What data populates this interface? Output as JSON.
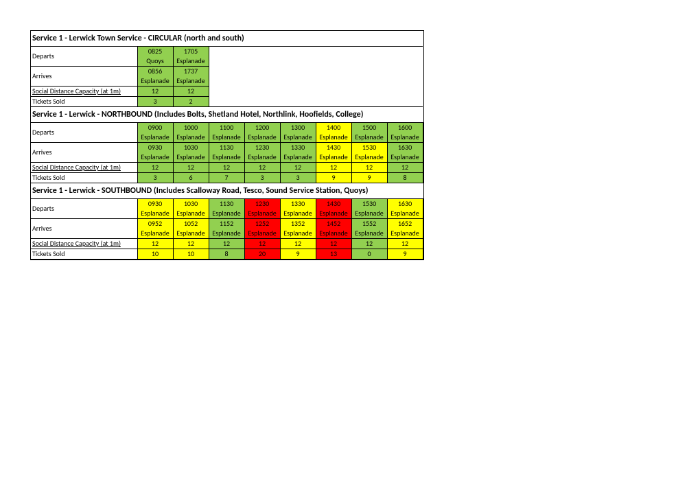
{
  "colors": {
    "green": "#92d050",
    "yellow": "#ffff00",
    "red": "#ff0000",
    "white": "#ffffff",
    "black": "#000000"
  },
  "labels": {
    "departs": "Departs",
    "arrives": "Arrives",
    "capacity": "Social Distance Capacity (at 1m)",
    "tickets": "Tickets Sold"
  },
  "sections": [
    {
      "title": "Service 1 - Lerwick Town Service - CIRCULAR (north and south)",
      "columns": 2,
      "departs": [
        {
          "time": "0825",
          "loc": "Quoys",
          "color": "green"
        },
        {
          "time": "1705",
          "loc": "Esplanade",
          "color": "green"
        }
      ],
      "arrives": [
        {
          "time": "0856",
          "loc": "Esplanade",
          "color": "green"
        },
        {
          "time": "1737",
          "loc": "Esplanade",
          "color": "green"
        }
      ],
      "capacity": [
        {
          "val": "12",
          "color": "green"
        },
        {
          "val": "12",
          "color": "green"
        }
      ],
      "tickets": [
        {
          "val": "3",
          "color": "green"
        },
        {
          "val": "2",
          "color": "green"
        }
      ]
    },
    {
      "title": "Service 1 - Lerwick - NORTHBOUND (Includes Bolts, Shetland Hotel, Northlink, Hoofields, College)",
      "columns": 8,
      "departs": [
        {
          "time": "0900",
          "loc": "Esplanade",
          "color": "green"
        },
        {
          "time": "1000",
          "loc": "Esplanade",
          "color": "green"
        },
        {
          "time": "1100",
          "loc": "Esplanade",
          "color": "green"
        },
        {
          "time": "1200",
          "loc": "Esplanade",
          "color": "green"
        },
        {
          "time": "1300",
          "loc": "Esplanade",
          "color": "green"
        },
        {
          "time": "1400",
          "loc": "Esplanade",
          "color": "yellow"
        },
        {
          "time": "1500",
          "loc": "Esplanade",
          "color": "green"
        },
        {
          "time": "1600",
          "loc": "Esplanade",
          "color": "green"
        }
      ],
      "arrives": [
        {
          "time": "0930",
          "loc": "Esplanade",
          "color": "green"
        },
        {
          "time": "1030",
          "loc": "Esplanade",
          "color": "green"
        },
        {
          "time": "1130",
          "loc": "Esplanade",
          "color": "green"
        },
        {
          "time": "1230",
          "loc": "Esplanade",
          "color": "green"
        },
        {
          "time": "1330",
          "loc": "Esplanade",
          "color": "green"
        },
        {
          "time": "1430",
          "loc": "Esplanade",
          "color": "yellow"
        },
        {
          "time": "1530",
          "loc": "Esplanade",
          "color": "yellow"
        },
        {
          "time": "1630",
          "loc": "Esplanade",
          "color": "green"
        }
      ],
      "capacity": [
        {
          "val": "12",
          "color": "green"
        },
        {
          "val": "12",
          "color": "green"
        },
        {
          "val": "12",
          "color": "green"
        },
        {
          "val": "12",
          "color": "green"
        },
        {
          "val": "12",
          "color": "green"
        },
        {
          "val": "12",
          "color": "yellow"
        },
        {
          "val": "12",
          "color": "yellow"
        },
        {
          "val": "12",
          "color": "green"
        }
      ],
      "tickets": [
        {
          "val": "3",
          "color": "green"
        },
        {
          "val": "6",
          "color": "green"
        },
        {
          "val": "7",
          "color": "green"
        },
        {
          "val": "3",
          "color": "green"
        },
        {
          "val": "3",
          "color": "green"
        },
        {
          "val": "9",
          "color": "yellow"
        },
        {
          "val": "9",
          "color": "yellow"
        },
        {
          "val": "8",
          "color": "green"
        }
      ]
    },
    {
      "title": "Service 1 - Lerwick - SOUTHBOUND (Includes Scalloway Road, Tesco, Sound Service Station, Quoys)",
      "columns": 8,
      "departs": [
        {
          "time": "0930",
          "loc": "Esplanade",
          "color": "yellow"
        },
        {
          "time": "1030",
          "loc": "Esplanade",
          "color": "yellow"
        },
        {
          "time": "1130",
          "loc": "Esplanade",
          "color": "green"
        },
        {
          "time": "1230",
          "loc": "Esplanade",
          "color": "red"
        },
        {
          "time": "1330",
          "loc": "Esplanade",
          "color": "yellow"
        },
        {
          "time": "1430",
          "loc": "Esplanade",
          "color": "red"
        },
        {
          "time": "1530",
          "loc": "Esplanade",
          "color": "green"
        },
        {
          "time": "1630",
          "loc": "Esplanade",
          "color": "yellow"
        }
      ],
      "arrives": [
        {
          "time": "0952",
          "loc": "Esplanade",
          "color": "yellow"
        },
        {
          "time": "1052",
          "loc": "Esplanade",
          "color": "yellow"
        },
        {
          "time": "1152",
          "loc": "Esplanade",
          "color": "green"
        },
        {
          "time": "1252",
          "loc": "Esplanade",
          "color": "red"
        },
        {
          "time": "1352",
          "loc": "Esplanade",
          "color": "yellow"
        },
        {
          "time": "1452",
          "loc": "Esplanade",
          "color": "red"
        },
        {
          "time": "1552",
          "loc": "Esplanade",
          "color": "green"
        },
        {
          "time": "1652",
          "loc": "Esplanade",
          "color": "yellow"
        }
      ],
      "capacity": [
        {
          "val": "12",
          "color": "yellow"
        },
        {
          "val": "12",
          "color": "yellow"
        },
        {
          "val": "12",
          "color": "green"
        },
        {
          "val": "12",
          "color": "red"
        },
        {
          "val": "12",
          "color": "yellow"
        },
        {
          "val": "12",
          "color": "red"
        },
        {
          "val": "12",
          "color": "green"
        },
        {
          "val": "12",
          "color": "yellow"
        }
      ],
      "tickets": [
        {
          "val": "10",
          "color": "yellow"
        },
        {
          "val": "10",
          "color": "yellow"
        },
        {
          "val": "8",
          "color": "green"
        },
        {
          "val": "20",
          "color": "red"
        },
        {
          "val": "9",
          "color": "yellow"
        },
        {
          "val": "13",
          "color": "red"
        },
        {
          "val": "0",
          "color": "green"
        },
        {
          "val": "9",
          "color": "yellow"
        }
      ]
    }
  ]
}
